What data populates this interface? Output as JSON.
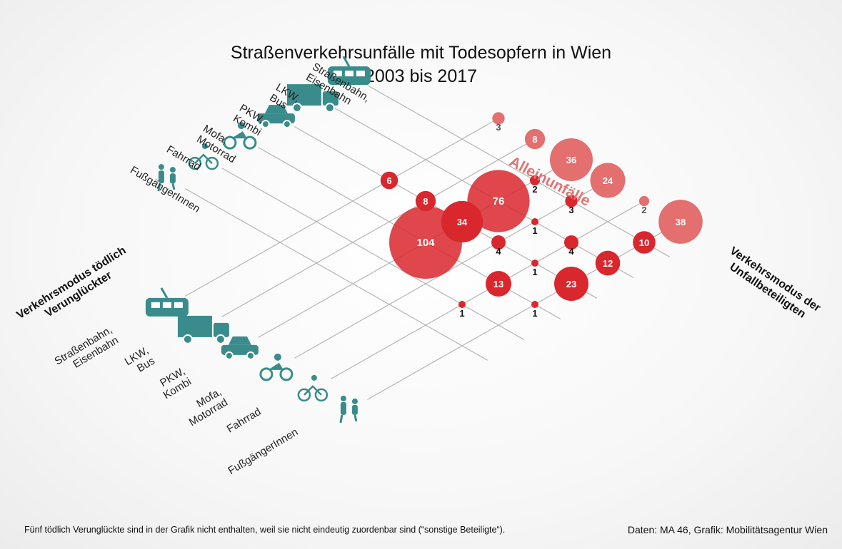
{
  "title_line1": "Straßenverkehrsunfälle mit Todesopfern in Wien",
  "title_line2": "2003 bis 2017",
  "axis_left_title": "Verkehrsmodus tödlich Verunglückter",
  "axis_right_title": "Verkehrsmodus der Unfallbeteiligten",
  "alleinunfaelle_label": "Alleinunfälle",
  "footnote": "Fünf tödlich Verunglückte sind in der Grafik nicht enthalten, weil sie nicht eindeutig zuordenbar sind  (“sonstige Beteiligte“).",
  "credit": "Daten: MA 46, Grafik: Mobilitätsagentur Wien",
  "colors": {
    "bubble": "#d9272e",
    "alone": "#e36f6f",
    "icon": "#3a8c8c",
    "grid": "#b5b5b5"
  },
  "chart_data": {
    "type": "bubble-matrix",
    "left_categories": [
      "Straßenbahn, Eisenbahn",
      "LKW, Bus",
      "PKW, Kombi",
      "Mofa, Motorrad",
      "Fahrrad",
      "FußgängerInnen"
    ],
    "right_categories": [
      "Straßenbahn, Eisenbahn",
      "LKW, Bus",
      "PKW, Kombi",
      "Mofa, Motorrad",
      "Fahrrad",
      "FußgängerInnen"
    ],
    "left_icons": [
      "tram-icon",
      "truck-icon",
      "car-icon",
      "motorcycle-icon",
      "bicycle-icon",
      "pedestrian-icon"
    ],
    "right_icons": [
      "tram-icon",
      "truck-icon",
      "car-icon",
      "motorcycle-icon",
      "bicycle-icon",
      "pedestrian-icon"
    ],
    "cells": [
      {
        "victim": "PKW, Kombi",
        "other": "Straßenbahn, Eisenbahn",
        "value": 2
      },
      {
        "victim": "Mofa, Motorrad",
        "other": "Straßenbahn, Eisenbahn",
        "value": 3
      },
      {
        "victim": "Mofa, Motorrad",
        "other": "LKW, Bus",
        "value": 1
      },
      {
        "victim": "Mofa, Motorrad",
        "other": "PKW, Kombi",
        "value": 4
      },
      {
        "victim": "Fahrrad",
        "other": "LKW, Bus",
        "value": 4
      },
      {
        "victim": "Fahrrad",
        "other": "PKW, Kombi",
        "value": 1
      },
      {
        "victim": "Fahrrad",
        "other": "Mofa, Motorrad",
        "value": 13
      },
      {
        "victim": "Fahrrad",
        "other": "Fahrrad",
        "value": 1
      },
      {
        "victim": "FußgängerInnen",
        "other": "Straßenbahn, Eisenbahn",
        "value": 10
      },
      {
        "victim": "FußgängerInnen",
        "other": "LKW, Bus",
        "value": 12
      },
      {
        "victim": "FußgängerInnen",
        "other": "PKW, Kombi",
        "value": 23
      },
      {
        "victim": "PKW, Kombi",
        "other": "LKW, Bus",
        "value": 76
      },
      {
        "victim": "PKW, Kombi",
        "other": "PKW, Kombi",
        "value": 34
      },
      {
        "victim": "PKW, Kombi",
        "other": "Mofa, Motorrad",
        "value": 104
      },
      {
        "victim": "LKW, Bus",
        "other": "PKW, Kombi",
        "value": 8
      },
      {
        "victim": "Straßenbahn, Eisenbahn",
        "other": "PKW, Kombi",
        "value": 6
      },
      {
        "victim": "FußgängerInnen",
        "other": "Mofa, Motorrad",
        "value": 1
      }
    ],
    "alone": [
      {
        "victim": "Straßenbahn, Eisenbahn",
        "value": 3
      },
      {
        "victim": "LKW, Bus",
        "value": 8
      },
      {
        "victim": "PKW, Kombi",
        "value": 36
      },
      {
        "victim": "Mofa, Motorrad",
        "value": 24
      },
      {
        "victim": "Fahrrad",
        "value": 2
      },
      {
        "victim": "FußgängerInnen",
        "value": 38
      }
    ]
  }
}
